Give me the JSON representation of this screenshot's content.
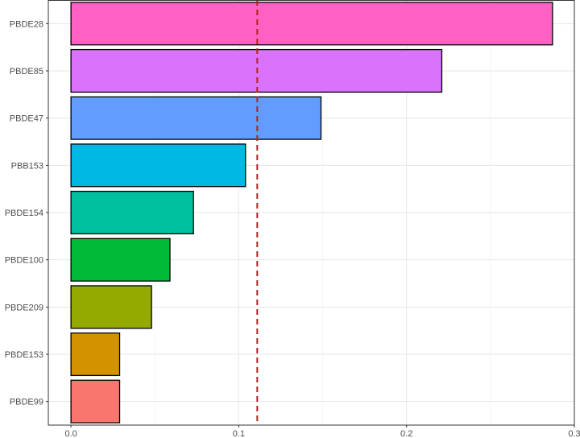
{
  "chart_data": {
    "type": "bar",
    "orientation": "horizontal",
    "title": "",
    "xlabel": "",
    "ylabel": "",
    "categories": [
      "PBDE28",
      "PBDE85",
      "PBDE47",
      "PBB153",
      "PBDE154",
      "PBDE100",
      "PBDE209",
      "PBDE153",
      "PBDE99"
    ],
    "values": [
      0.287,
      0.221,
      0.149,
      0.104,
      0.073,
      0.059,
      0.048,
      0.029,
      0.029
    ],
    "colors": [
      "#FF61C3",
      "#DB72FB",
      "#619CFF",
      "#00B9E3",
      "#00C19F",
      "#00BA38",
      "#93AA00",
      "#D39200",
      "#F8766D"
    ],
    "xlim": [
      -0.0135,
      0.3
    ],
    "xticks": [
      0.0,
      0.1,
      0.2,
      0.3
    ],
    "xtick_labels": [
      "0.0",
      "0.1",
      "0.2",
      "0.3"
    ],
    "reference_line": {
      "value": 0.111,
      "style": "dashed",
      "color": "#B22222"
    },
    "grid": true,
    "legend": "none"
  }
}
